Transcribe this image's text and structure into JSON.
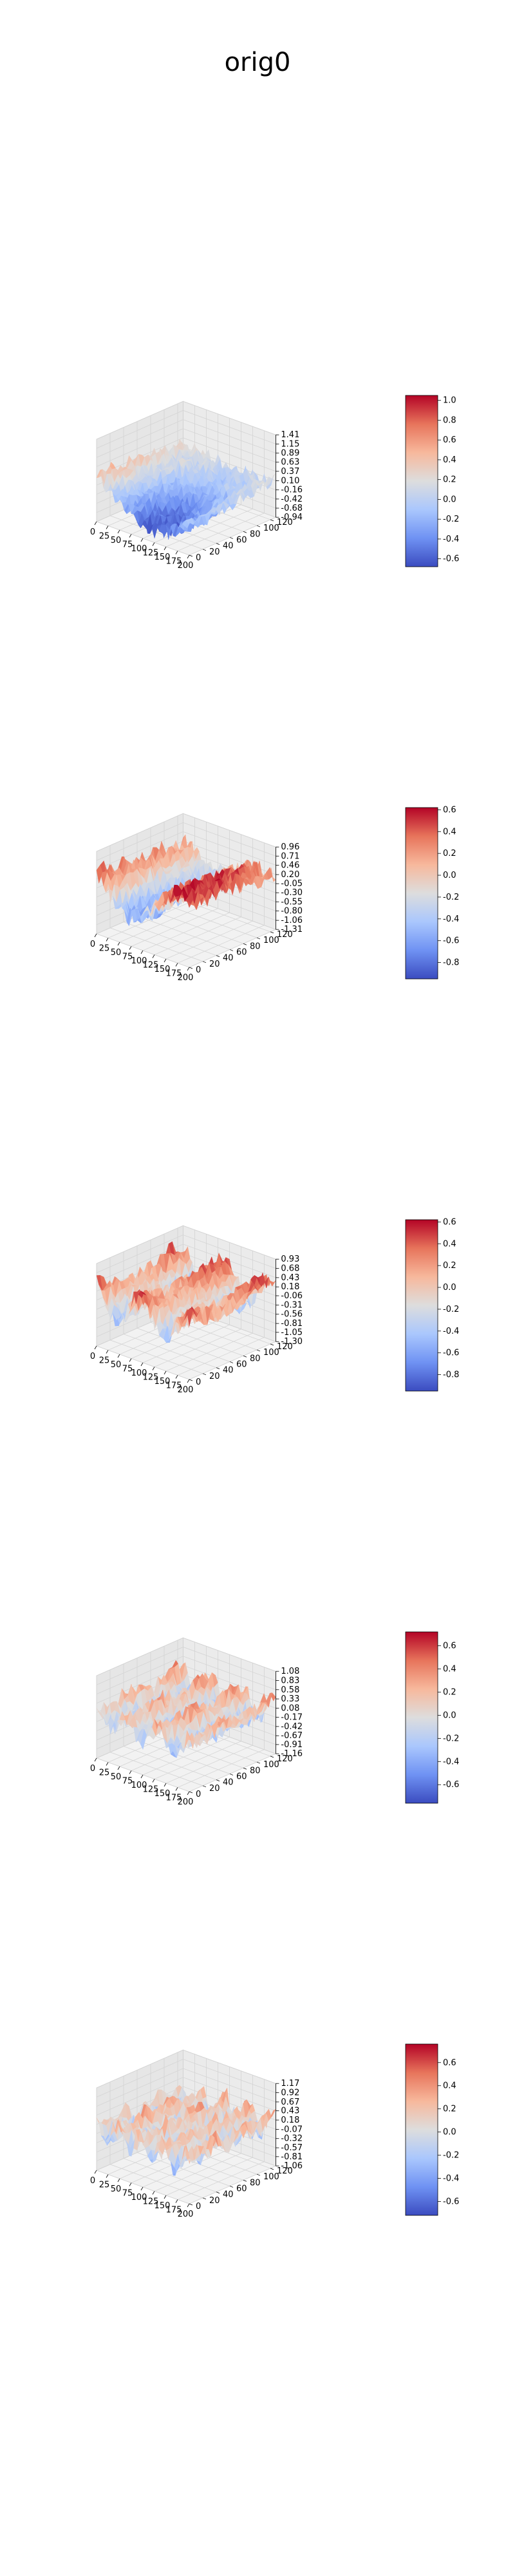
{
  "title": "orig0",
  "colormap": "coolwarm",
  "colormap_stops": [
    "#3b4cc0",
    "#6f92f3",
    "#aac7fd",
    "#dddddd",
    "#f7b89c",
    "#e7745b",
    "#b40426"
  ],
  "pane_color": "#f2f2f2",
  "grid": true,
  "chart_data": [
    {
      "type": "surface3d",
      "x_ticks": [
        "0",
        "25",
        "50",
        "75",
        "100",
        "125",
        "150",
        "175",
        "200"
      ],
      "y_ticks": [
        "0",
        "20",
        "40",
        "60",
        "80",
        "100",
        "120"
      ],
      "z_ticks": [
        "1.41",
        "1.15",
        "0.89",
        "0.63",
        "0.37",
        "0.10",
        "-0.16",
        "-0.42",
        "-0.68",
        "-0.94"
      ],
      "colorbar_ticks": [
        "1.0",
        "0.8",
        "0.6",
        "0.4",
        "0.2",
        "0.0",
        "-0.2",
        "-0.4",
        "-0.6"
      ],
      "colorbar_range": [
        -0.68,
        1.05
      ],
      "xlim": [
        0,
        200
      ],
      "ylim": [
        0,
        128
      ],
      "zlim": [
        -0.94,
        1.41
      ],
      "surface": {
        "x_waves": 0.5,
        "x_phase": 1.2,
        "y_waves": 0.5,
        "y_phase": 0.0,
        "amplitude": 0.75,
        "offset": 0.15,
        "noise": 0.22
      }
    },
    {
      "type": "surface3d",
      "x_ticks": [
        "0",
        "25",
        "50",
        "75",
        "100",
        "125",
        "150",
        "175",
        "200"
      ],
      "y_ticks": [
        "0",
        "20",
        "40",
        "60",
        "80",
        "100",
        "120"
      ],
      "z_ticks": [
        "0.96",
        "0.71",
        "0.46",
        "0.20",
        "-0.05",
        "-0.30",
        "-0.55",
        "-0.80",
        "-1.06",
        "-1.31"
      ],
      "colorbar_ticks": [
        "0.6",
        "0.4",
        "0.2",
        "0.0",
        "-0.2",
        "-0.4",
        "-0.6",
        "-0.8"
      ],
      "colorbar_range": [
        -0.95,
        0.62
      ],
      "xlim": [
        0,
        200
      ],
      "ylim": [
        0,
        128
      ],
      "zlim": [
        -1.31,
        0.96
      ],
      "surface": {
        "x_waves": 1.0,
        "x_phase": 0.8,
        "y_waves": 0.3,
        "y_phase": 0.0,
        "amplitude": 0.55,
        "offset": 0.0,
        "noise": 0.25
      }
    },
    {
      "type": "surface3d",
      "x_ticks": [
        "0",
        "25",
        "50",
        "75",
        "100",
        "125",
        "150",
        "175",
        "200"
      ],
      "y_ticks": [
        "0",
        "20",
        "40",
        "60",
        "80",
        "100",
        "120"
      ],
      "z_ticks": [
        "0.93",
        "0.68",
        "0.43",
        "0.18",
        "-0.06",
        "-0.31",
        "-0.56",
        "-0.81",
        "-1.05",
        "-1.30"
      ],
      "colorbar_ticks": [
        "0.6",
        "0.4",
        "0.2",
        "0.0",
        "-0.2",
        "-0.4",
        "-0.6",
        "-0.8"
      ],
      "colorbar_range": [
        -0.95,
        0.62
      ],
      "xlim": [
        0,
        200
      ],
      "ylim": [
        0,
        128
      ],
      "zlim": [
        -1.3,
        0.93
      ],
      "surface": {
        "x_waves": 2.0,
        "x_phase": 0.5,
        "y_waves": 1.0,
        "y_phase": 0.7,
        "amplitude": 0.45,
        "offset": 0.0,
        "noise": 0.25
      }
    },
    {
      "type": "surface3d",
      "x_ticks": [
        "0",
        "25",
        "50",
        "75",
        "100",
        "125",
        "150",
        "175",
        "200"
      ],
      "y_ticks": [
        "0",
        "20",
        "40",
        "60",
        "80",
        "100",
        "120"
      ],
      "z_ticks": [
        "1.08",
        "0.83",
        "0.58",
        "0.33",
        "0.08",
        "-0.17",
        "-0.42",
        "-0.67",
        "-0.91",
        "-1.16"
      ],
      "colorbar_ticks": [
        "0.6",
        "0.4",
        "0.2",
        "0.0",
        "-0.2",
        "-0.4",
        "-0.6"
      ],
      "colorbar_range": [
        -0.76,
        0.72
      ],
      "xlim": [
        0,
        200
      ],
      "ylim": [
        0,
        128
      ],
      "zlim": [
        -1.16,
        1.08
      ],
      "surface": {
        "x_waves": 3.0,
        "x_phase": 0.3,
        "y_waves": 2.0,
        "y_phase": 1.1,
        "amplitude": 0.35,
        "offset": 0.0,
        "noise": 0.25
      }
    },
    {
      "type": "surface3d",
      "x_ticks": [
        "0",
        "25",
        "50",
        "75",
        "100",
        "125",
        "150",
        "175",
        "200"
      ],
      "y_ticks": [
        "0",
        "20",
        "40",
        "60",
        "80",
        "100",
        "120"
      ],
      "z_ticks": [
        "1.17",
        "0.92",
        "0.67",
        "0.43",
        "0.18",
        "-0.07",
        "-0.32",
        "-0.57",
        "-0.81",
        "-1.06"
      ],
      "colorbar_ticks": [
        "0.6",
        "0.4",
        "0.2",
        "0.0",
        "-0.2",
        "-0.4",
        "-0.6"
      ],
      "colorbar_range": [
        -0.72,
        0.76
      ],
      "xlim": [
        0,
        200
      ],
      "ylim": [
        0,
        128
      ],
      "zlim": [
        -1.06,
        1.17
      ],
      "surface": {
        "x_waves": 4.0,
        "x_phase": 0.9,
        "y_waves": 3.0,
        "y_phase": 0.4,
        "amplitude": 0.3,
        "offset": 0.05,
        "noise": 0.25
      }
    }
  ]
}
